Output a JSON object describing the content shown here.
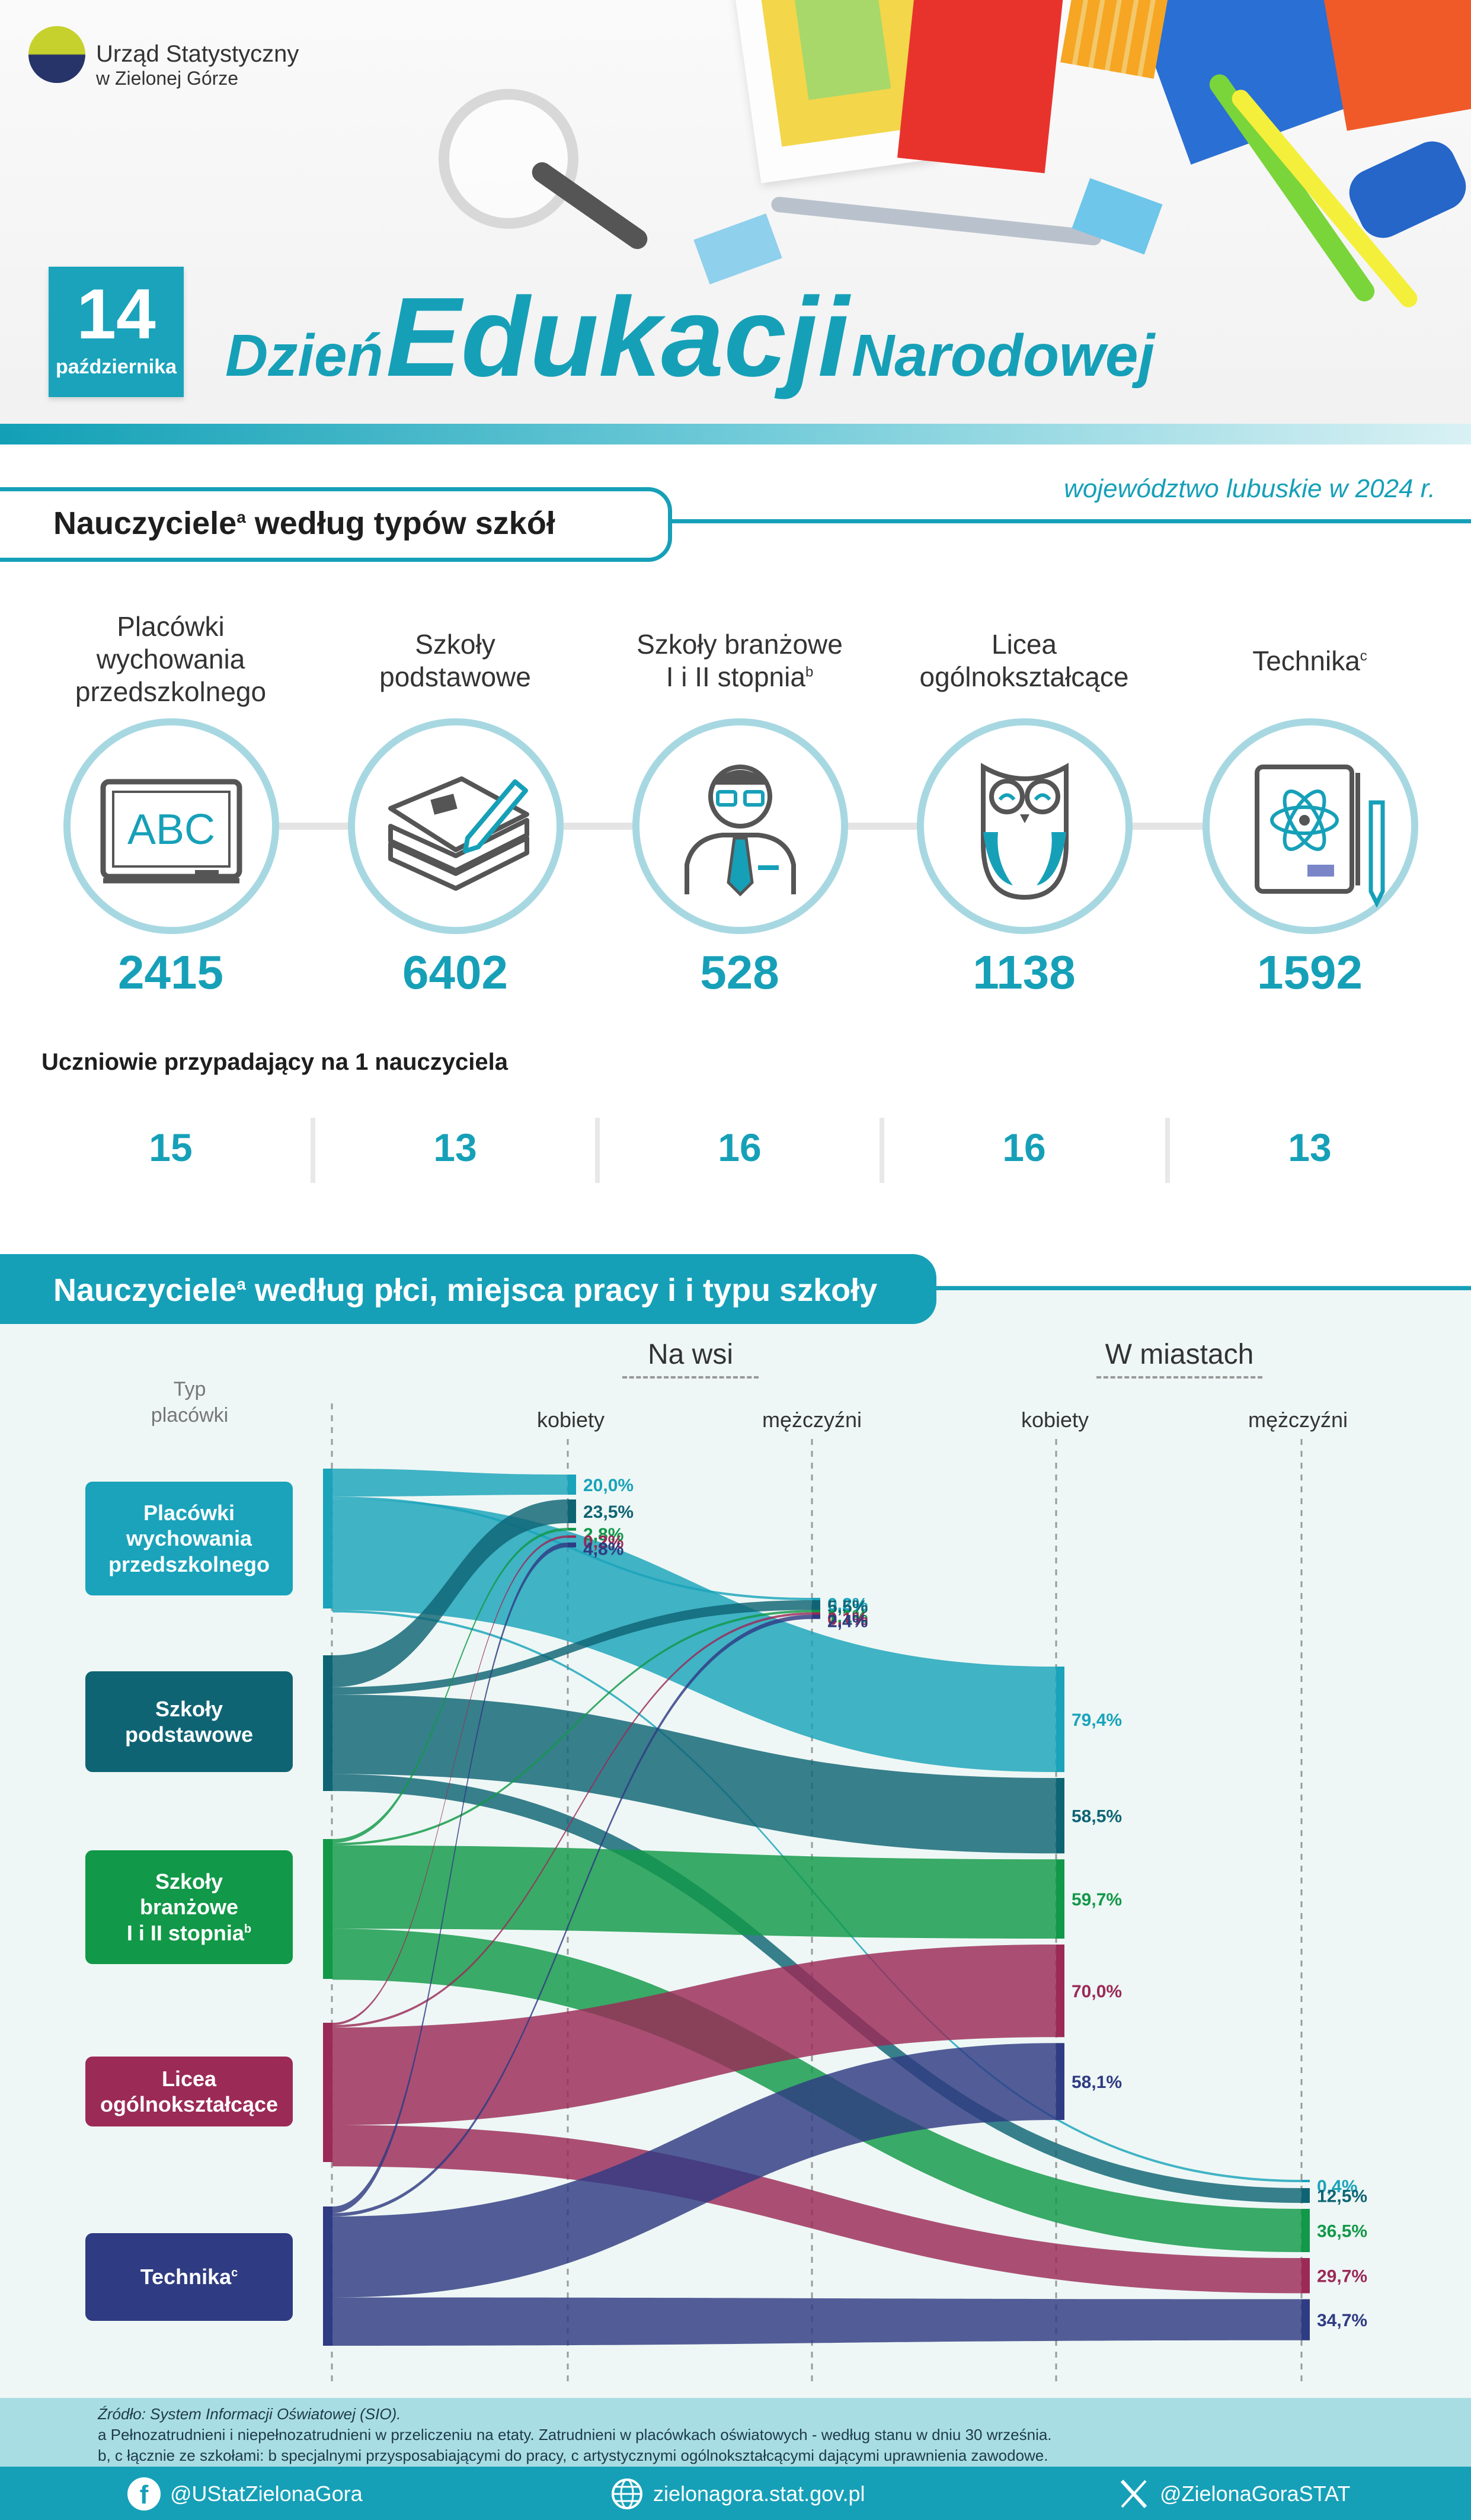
{
  "logo": {
    "line1": "Urząd Statystyczny",
    "line2": "w Zielonej Górze"
  },
  "date": {
    "day": "14",
    "month": "października"
  },
  "title": {
    "word1": "Dzień",
    "word2": "Edukacji",
    "word3": "Narodowej"
  },
  "region": "województwo lubuskie w 2024 r.",
  "section1": {
    "title": "Nauczyciele",
    "title_sup": "a",
    "title_rest": " według typów szkół",
    "columns": [
      {
        "title_lines": [
          "Placówki",
          "wychowania",
          "przedszkolnego"
        ],
        "sup": "",
        "icon": "chalkboard-abc-icon",
        "icon_text": "ABC",
        "value": "2415",
        "ratio": "15"
      },
      {
        "title_lines": [
          "Szkoły",
          "podstawowe"
        ],
        "sup": "",
        "icon": "books-pencil-icon",
        "value": "6402",
        "ratio": "13"
      },
      {
        "title_lines": [
          "Szkoły branżowe",
          "I i II stopnia"
        ],
        "sup": "b",
        "icon": "teacher-icon",
        "value": "528",
        "ratio": "16"
      },
      {
        "title_lines": [
          "Licea",
          "ogólnokształcące"
        ],
        "sup": "",
        "icon": "owl-icon",
        "value": "1138",
        "ratio": "16"
      },
      {
        "title_lines": [
          "Technika"
        ],
        "sup": "c",
        "icon": "atom-clipboard-icon",
        "value": "1592",
        "ratio": "13"
      }
    ],
    "ratio_label": "Uczniowie przypadający na 1 nauczyciela"
  },
  "section2": {
    "title": "Nauczyciele",
    "title_sup": "a",
    "title_rest": " według płci, miejsca pracy i i typu szkoły",
    "typ_label": [
      "Typ",
      "placówki"
    ],
    "group_village": "Na wsi",
    "group_city": "W miastach",
    "col_women": "kobiety",
    "col_men": "mężczyźni",
    "categories": [
      {
        "lines": [
          "Placówki",
          "wychowania",
          "przedszkolnego"
        ],
        "sup": "",
        "color": "#1aa3bb"
      },
      {
        "lines": [
          "Szkoły",
          "podstawowe"
        ],
        "sup": "",
        "color": "#0f6474"
      },
      {
        "lines": [
          "Szkoły",
          "branżowe",
          "I i II stopnia"
        ],
        "sup": "b",
        "color": "#119848"
      },
      {
        "lines": [
          "Licea",
          "ogólnokształcące"
        ],
        "sup": "",
        "color": "#9b2a57"
      },
      {
        "lines": [
          "Technika"
        ],
        "sup": "c",
        "color": "#2f3b82"
      }
    ],
    "flows": {
      "village_women": [
        "20,0%",
        "23,5%",
        "2,8%",
        "0,2%",
        "4,8%"
      ],
      "village_men": [
        "0,2%",
        "5,5%",
        "1,1%",
        "0,1%",
        "2,4%"
      ],
      "city_women": [
        "79,4%",
        "58,5%",
        "59,7%",
        "70,0%",
        "58,1%"
      ],
      "city_men": [
        "0,4%",
        "12,5%",
        "36,5%",
        "29,7%",
        "34,7%"
      ]
    }
  },
  "footer": {
    "source": "Źródło: System Informacji Oświatowej (SIO).",
    "note_a": "a Pełnozatrudnieni i niepełnozatrudnieni w przeliczeniu na etaty. Zatrudnieni w placówkach oświatowych - według stanu w dniu 30 września.",
    "note_bc": "b, c łącznie ze szkołami: b specjalnymi przysposabiającymi do pracy, c artystycznymi ogólnokształcącymi dającymi uprawnienia zawodowe.",
    "facebook": "@UStatZielonaGora",
    "website": "zielonagora.stat.gov.pl",
    "x": "@ZielonaGoraSTAT"
  },
  "colors": {
    "accent": "#16a0b8",
    "ring": "#a7d8e2",
    "bg2": "#eef7f5"
  }
}
